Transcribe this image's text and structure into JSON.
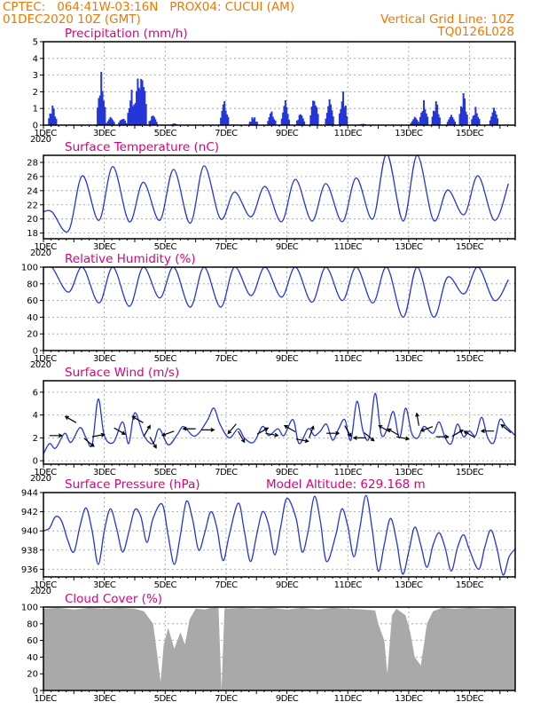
{
  "header": {
    "line1": "CPTEC:   064:41W-03:16N   PROX04: CUCUI (AM)",
    "line2_left": "01DEC2020 10Z (GMT)",
    "line2_right": "Vertical Grid Line: 10Z",
    "code": "TQ0126L028"
  },
  "colors": {
    "header": "#f07800",
    "title": "#e0007a",
    "series": "#2436d8",
    "cloud": "#a9a9a9"
  },
  "x_axis": {
    "unit": "days since 01DEC2020 10Z",
    "range": [
      0,
      15.5
    ],
    "tick_labels": [
      {
        "label": "1DEC",
        "x": 0
      },
      {
        "label": "3DEC",
        "x": 2
      },
      {
        "label": "5DEC",
        "x": 4
      },
      {
        "label": "7DEC",
        "x": 6
      },
      {
        "label": "9DEC",
        "x": 8
      },
      {
        "label": "11DEC",
        "x": 10
      },
      {
        "label": "13DEC",
        "x": 12
      },
      {
        "label": "15DEC",
        "x": 14
      }
    ],
    "year_label": "2020"
  },
  "chart_data": [
    {
      "id": "precip",
      "type": "bar",
      "title": "Precipitation (mm/h)",
      "ylim": [
        0,
        5
      ],
      "yticks": [
        0,
        1,
        2,
        3,
        4,
        5
      ],
      "grid": true,
      "peaks": [
        {
          "x": 0.3,
          "y": 1.3
        },
        {
          "x": 1.9,
          "y": 3.2
        },
        {
          "x": 2.2,
          "y": 0.6
        },
        {
          "x": 2.6,
          "y": 0.5
        },
        {
          "x": 2.9,
          "y": 2.2
        },
        {
          "x": 3.1,
          "y": 2.9
        },
        {
          "x": 3.25,
          "y": 3.8
        },
        {
          "x": 3.6,
          "y": 0.7
        },
        {
          "x": 4.3,
          "y": 0.1
        },
        {
          "x": 5.95,
          "y": 1.6
        },
        {
          "x": 6.9,
          "y": 0.6
        },
        {
          "x": 7.5,
          "y": 0.9
        },
        {
          "x": 7.95,
          "y": 1.5
        },
        {
          "x": 8.45,
          "y": 0.8
        },
        {
          "x": 8.9,
          "y": 2.0
        },
        {
          "x": 9.4,
          "y": 1.6
        },
        {
          "x": 9.85,
          "y": 2.1
        },
        {
          "x": 10.5,
          "y": 0.1
        },
        {
          "x": 12.2,
          "y": 0.6
        },
        {
          "x": 12.5,
          "y": 1.5
        },
        {
          "x": 12.9,
          "y": 1.6
        },
        {
          "x": 13.4,
          "y": 1.0
        },
        {
          "x": 13.8,
          "y": 2.1
        },
        {
          "x": 14.2,
          "y": 1.1
        },
        {
          "x": 14.8,
          "y": 1.3
        }
      ]
    },
    {
      "id": "temp",
      "type": "line",
      "title": "Surface Temperature (nC)",
      "ylim": [
        17.2,
        29
      ],
      "yticks": [
        18,
        20,
        22,
        24,
        26,
        28
      ],
      "grid": true,
      "daily": [
        {
          "day": 0,
          "max": 21.0,
          "min": 18.3
        },
        {
          "day": 1,
          "max": 26.1,
          "min": 19.8
        },
        {
          "day": 2,
          "max": 27.4,
          "min": 19.6
        },
        {
          "day": 3,
          "max": 25.2,
          "min": 19.8
        },
        {
          "day": 4,
          "max": 27.0,
          "min": 19.4
        },
        {
          "day": 5,
          "max": 27.5,
          "min": 20.0
        },
        {
          "day": 6,
          "max": 23.8,
          "min": 20.3
        },
        {
          "day": 7,
          "max": 24.6,
          "min": 19.6
        },
        {
          "day": 8,
          "max": 25.6,
          "min": 19.7
        },
        {
          "day": 9,
          "max": 25.0,
          "min": 19.6
        },
        {
          "day": 10,
          "max": 25.8,
          "min": 20.0
        },
        {
          "day": 11,
          "max": 29.2,
          "min": 19.7
        },
        {
          "day": 12,
          "max": 29.0,
          "min": 19.8
        },
        {
          "day": 13,
          "max": 24.1,
          "min": 20.6
        },
        {
          "day": 14,
          "max": 26.1,
          "min": 19.8
        },
        {
          "day": 15,
          "max": 25.0,
          "min": 23.6
        }
      ]
    },
    {
      "id": "rh",
      "type": "line",
      "title": "Relative Humidity (%)",
      "ylim": [
        0,
        100
      ],
      "yticks": [
        0,
        20,
        40,
        60,
        80,
        100
      ],
      "grid": true,
      "daily": [
        {
          "day": 0,
          "max": 100,
          "min": 70
        },
        {
          "day": 1,
          "max": 100,
          "min": 57
        },
        {
          "day": 2,
          "max": 100,
          "min": 53
        },
        {
          "day": 3,
          "max": 100,
          "min": 63
        },
        {
          "day": 4,
          "max": 100,
          "min": 52
        },
        {
          "day": 5,
          "max": 100,
          "min": 52
        },
        {
          "day": 6,
          "max": 100,
          "min": 66
        },
        {
          "day": 7,
          "max": 100,
          "min": 64
        },
        {
          "day": 8,
          "max": 100,
          "min": 58
        },
        {
          "day": 9,
          "max": 100,
          "min": 60
        },
        {
          "day": 10,
          "max": 100,
          "min": 57
        },
        {
          "day": 11,
          "max": 100,
          "min": 40
        },
        {
          "day": 12,
          "max": 100,
          "min": 40
        },
        {
          "day": 13,
          "max": 88,
          "min": 68
        },
        {
          "day": 14,
          "max": 100,
          "min": 60
        },
        {
          "day": 15,
          "max": 85,
          "min": 70
        }
      ]
    },
    {
      "id": "wind",
      "type": "line",
      "title": "Surface Wind (m/s)",
      "ylim": [
        -0.3,
        7
      ],
      "yticks": [
        0,
        2,
        4,
        6
      ],
      "grid": true,
      "points": [
        [
          0,
          0.6
        ],
        [
          0.2,
          1.5
        ],
        [
          0.4,
          1.1
        ],
        [
          0.7,
          2.4
        ],
        [
          0.9,
          1.6
        ],
        [
          1.2,
          2.9
        ],
        [
          1.4,
          2.0
        ],
        [
          1.6,
          1.4
        ],
        [
          1.8,
          5.4
        ],
        [
          2.0,
          2.2
        ],
        [
          2.3,
          1.6
        ],
        [
          2.6,
          3.4
        ],
        [
          2.8,
          1.5
        ],
        [
          3.0,
          4.2
        ],
        [
          3.3,
          2.2
        ],
        [
          3.6,
          1.5
        ],
        [
          3.8,
          2.8
        ],
        [
          4.1,
          1.4
        ],
        [
          4.4,
          2.3
        ],
        [
          4.6,
          3.0
        ],
        [
          4.9,
          2.2
        ],
        [
          5.1,
          2.4
        ],
        [
          5.4,
          3.6
        ],
        [
          5.6,
          4.6
        ],
        [
          5.8,
          3.2
        ],
        [
          6.1,
          2.0
        ],
        [
          6.4,
          2.8
        ],
        [
          6.6,
          2.0
        ],
        [
          6.9,
          1.6
        ],
        [
          7.2,
          3.0
        ],
        [
          7.4,
          2.2
        ],
        [
          7.7,
          2.8
        ],
        [
          7.9,
          2.2
        ],
        [
          8.2,
          3.6
        ],
        [
          8.4,
          1.5
        ],
        [
          8.7,
          2.8
        ],
        [
          8.9,
          2.2
        ],
        [
          9.1,
          2.6
        ],
        [
          9.3,
          3.2
        ],
        [
          9.5,
          1.8
        ],
        [
          9.7,
          2.8
        ],
        [
          9.9,
          3.6
        ],
        [
          10.1,
          1.8
        ],
        [
          10.3,
          5.2
        ],
        [
          10.5,
          2.6
        ],
        [
          10.7,
          2.0
        ],
        [
          10.9,
          5.9
        ],
        [
          11.1,
          2.3
        ],
        [
          11.3,
          2.8
        ],
        [
          11.5,
          4.3
        ],
        [
          11.7,
          2.0
        ],
        [
          11.9,
          4.6
        ],
        [
          12.1,
          2.4
        ],
        [
          12.3,
          2.0
        ],
        [
          12.5,
          3.0
        ],
        [
          12.8,
          2.4
        ],
        [
          13.0,
          3.4
        ],
        [
          13.2,
          2.0
        ],
        [
          13.4,
          1.5
        ],
        [
          13.6,
          3.2
        ],
        [
          13.8,
          2.1
        ],
        [
          14.0,
          2.6
        ],
        [
          14.2,
          2.2
        ],
        [
          14.4,
          3.8
        ],
        [
          14.6,
          2.0
        ],
        [
          14.8,
          1.6
        ],
        [
          15.0,
          3.6
        ],
        [
          15.2,
          3.0
        ],
        [
          15.5,
          2.2
        ]
      ],
      "barbs": [
        [
          0.4,
          2.2,
          90
        ],
        [
          0.9,
          3.6,
          300
        ],
        [
          1.5,
          1.6,
          130
        ],
        [
          1.8,
          2.2,
          80
        ],
        [
          2.5,
          2.6,
          120
        ],
        [
          3.1,
          3.6,
          300
        ],
        [
          3.4,
          2.6,
          30
        ],
        [
          3.6,
          1.6,
          150
        ],
        [
          4.1,
          2.4,
          250
        ],
        [
          4.8,
          2.8,
          270
        ],
        [
          5.4,
          2.7,
          90
        ],
        [
          6.2,
          2.8,
          220
        ],
        [
          6.5,
          2.1,
          150
        ],
        [
          7.2,
          2.6,
          60
        ],
        [
          7.5,
          2.3,
          100
        ],
        [
          8.1,
          2.8,
          300
        ],
        [
          8.5,
          1.8,
          100
        ],
        [
          8.8,
          2.5,
          20
        ],
        [
          9.5,
          2.4,
          90
        ],
        [
          10.0,
          2.6,
          150
        ],
        [
          10.4,
          2.0,
          270
        ],
        [
          10.7,
          2.1,
          130
        ],
        [
          11.2,
          2.8,
          300
        ],
        [
          11.5,
          2.5,
          300
        ],
        [
          11.8,
          2.0,
          100
        ],
        [
          12.3,
          3.6,
          350
        ],
        [
          12.6,
          2.8,
          250
        ],
        [
          13.1,
          2.1,
          90
        ],
        [
          13.6,
          2.4,
          60
        ],
        [
          14.0,
          2.3,
          300
        ],
        [
          14.6,
          2.6,
          270
        ],
        [
          15.2,
          2.8,
          310
        ]
      ]
    },
    {
      "id": "press",
      "type": "line",
      "title": "Surface Pressure (hPa)",
      "annotation": "Model Altitude: 629.168 m",
      "ylim": [
        935.2,
        944
      ],
      "yticks": [
        936,
        938,
        940,
        942,
        944
      ],
      "grid": true,
      "points": [
        [
          0,
          940.0
        ],
        [
          0.2,
          940.3
        ],
        [
          0.4,
          941.5
        ],
        [
          0.6,
          941.0
        ],
        [
          0.8,
          939.0
        ],
        [
          1.0,
          937.8
        ],
        [
          1.2,
          940.5
        ],
        [
          1.4,
          942.4
        ],
        [
          1.6,
          940.0
        ],
        [
          1.8,
          936.5
        ],
        [
          2.0,
          940.0
        ],
        [
          2.2,
          942.3
        ],
        [
          2.4,
          940.3
        ],
        [
          2.6,
          937.8
        ],
        [
          2.8,
          939.8
        ],
        [
          3.0,
          942.2
        ],
        [
          3.2,
          941.5
        ],
        [
          3.4,
          938.8
        ],
        [
          3.6,
          941.3
        ],
        [
          3.9,
          942.8
        ],
        [
          4.1,
          939.5
        ],
        [
          4.3,
          936.5
        ],
        [
          4.5,
          939.6
        ],
        [
          4.7,
          943.1
        ],
        [
          4.9,
          941.2
        ],
        [
          5.1,
          938.0
        ],
        [
          5.3,
          939.8
        ],
        [
          5.5,
          942.0
        ],
        [
          5.7,
          940.3
        ],
        [
          5.9,
          936.9
        ],
        [
          6.1,
          939.5
        ],
        [
          6.4,
          942.9
        ],
        [
          6.6,
          940.0
        ],
        [
          6.8,
          936.8
        ],
        [
          7.0,
          939.5
        ],
        [
          7.2,
          942.0
        ],
        [
          7.4,
          940.6
        ],
        [
          7.6,
          937.5
        ],
        [
          7.8,
          940.5
        ],
        [
          8.0,
          943.4
        ],
        [
          8.3,
          941.3
        ],
        [
          8.5,
          937.8
        ],
        [
          8.7,
          940.0
        ],
        [
          8.9,
          943.6
        ],
        [
          9.1,
          941.0
        ],
        [
          9.3,
          936.8
        ],
        [
          9.6,
          939.5
        ],
        [
          9.8,
          942.3
        ],
        [
          10.0,
          940.5
        ],
        [
          10.2,
          937.3
        ],
        [
          10.4,
          940.4
        ],
        [
          10.6,
          943.7
        ],
        [
          10.8,
          940.2
        ],
        [
          11.0,
          935.8
        ],
        [
          11.2,
          938.6
        ],
        [
          11.4,
          941.3
        ],
        [
          11.6,
          939.0
        ],
        [
          11.8,
          935.5
        ],
        [
          12.0,
          937.8
        ],
        [
          12.2,
          940.4
        ],
        [
          12.4,
          938.5
        ],
        [
          12.6,
          936.2
        ],
        [
          12.8,
          938.5
        ],
        [
          13.0,
          939.8
        ],
        [
          13.2,
          938.2
        ],
        [
          13.4,
          935.8
        ],
        [
          13.6,
          938.2
        ],
        [
          13.8,
          939.6
        ],
        [
          14.0,
          938.0
        ],
        [
          14.3,
          936.0
        ],
        [
          14.5,
          938.3
        ],
        [
          14.7,
          940.1
        ],
        [
          14.9,
          938.2
        ],
        [
          15.1,
          935.4
        ],
        [
          15.3,
          937.3
        ],
        [
          15.5,
          938.1
        ]
      ]
    },
    {
      "id": "cloud",
      "type": "area",
      "title": "Cloud Cover (%)",
      "ylim": [
        0,
        100
      ],
      "yticks": [
        0,
        20,
        40,
        60,
        80,
        100
      ],
      "grid": true,
      "points": [
        [
          0,
          98
        ],
        [
          0.5,
          99
        ],
        [
          1.0,
          97
        ],
        [
          1.5,
          99
        ],
        [
          2.0,
          98
        ],
        [
          2.5,
          99
        ],
        [
          3.0,
          98
        ],
        [
          3.3,
          95
        ],
        [
          3.6,
          80
        ],
        [
          3.75,
          40
        ],
        [
          3.85,
          10
        ],
        [
          3.95,
          55
        ],
        [
          4.1,
          75
        ],
        [
          4.3,
          50
        ],
        [
          4.5,
          70
        ],
        [
          4.65,
          55
        ],
        [
          4.8,
          85
        ],
        [
          5.0,
          98
        ],
        [
          5.3,
          97
        ],
        [
          5.5,
          99
        ],
        [
          5.75,
          99
        ],
        [
          5.85,
          0
        ],
        [
          5.95,
          98
        ],
        [
          6.5,
          99
        ],
        [
          7.0,
          98
        ],
        [
          7.5,
          99
        ],
        [
          8.0,
          97
        ],
        [
          8.5,
          99
        ],
        [
          9.0,
          97
        ],
        [
          9.5,
          99
        ],
        [
          10.0,
          98
        ],
        [
          10.5,
          97
        ],
        [
          10.9,
          96
        ],
        [
          11.0,
          80
        ],
        [
          11.2,
          60
        ],
        [
          11.3,
          20
        ],
        [
          11.45,
          90
        ],
        [
          11.6,
          98
        ],
        [
          11.9,
          90
        ],
        [
          12.05,
          70
        ],
        [
          12.2,
          40
        ],
        [
          12.4,
          30
        ],
        [
          12.6,
          80
        ],
        [
          12.8,
          95
        ],
        [
          13.1,
          99
        ],
        [
          13.5,
          98
        ],
        [
          14.0,
          99
        ],
        [
          14.5,
          98
        ],
        [
          15.0,
          99
        ],
        [
          15.5,
          98
        ]
      ]
    }
  ]
}
